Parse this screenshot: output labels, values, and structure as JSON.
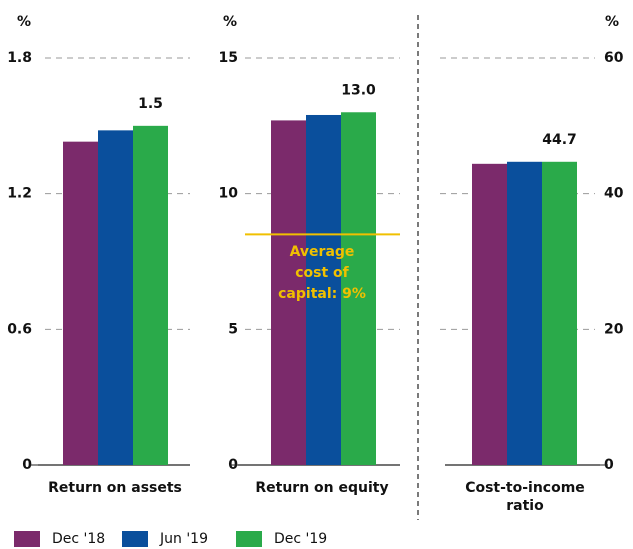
{
  "chart_data": [
    {
      "type": "bar",
      "ylabel": "%",
      "xlabel": "Return on assets",
      "ylim": [
        0,
        1.8
      ],
      "yticks": [
        0,
        0.6,
        1.2,
        1.8
      ],
      "yaxis_side": "left",
      "series": [
        {
          "name": "Dec '18",
          "color": "#7b2a6b",
          "values": [
            1.43
          ]
        },
        {
          "name": "Jun '19",
          "color": "#0a4f9c",
          "values": [
            1.48
          ]
        },
        {
          "name": "Dec '19",
          "color": "#2aaa4a",
          "values": [
            1.5
          ],
          "show_label": true
        }
      ]
    },
    {
      "type": "bar",
      "ylabel": "%",
      "xlabel": "Return on equity",
      "ylim": [
        0,
        15
      ],
      "yticks": [
        0,
        5,
        10,
        15
      ],
      "yaxis_side": "left",
      "series": [
        {
          "name": "Dec '18",
          "color": "#7b2a6b",
          "values": [
            12.7
          ]
        },
        {
          "name": "Jun '19",
          "color": "#0a4f9c",
          "values": [
            12.9
          ]
        },
        {
          "name": "Dec '19",
          "color": "#2aaa4a",
          "values": [
            13.0
          ],
          "value_labels": [
            "13.0"
          ],
          "show_label": true
        }
      ],
      "annotations": [
        {
          "text": "Average cost of capital: 9%",
          "y": 8.5,
          "color": "#f0c000"
        }
      ]
    },
    {
      "type": "bar",
      "ylabel": "%",
      "xlabel": "Cost-to-income ratio",
      "ylim": [
        0,
        60
      ],
      "yticks": [
        0,
        20,
        40,
        60
      ],
      "yaxis_side": "right",
      "series": [
        {
          "name": "Dec '18",
          "color": "#7b2a6b",
          "values": [
            44.4
          ]
        },
        {
          "name": "Jun '19",
          "color": "#0a4f9c",
          "values": [
            44.7
          ]
        },
        {
          "name": "Dec '19",
          "color": "#2aaa4a",
          "values": [
            44.7
          ],
          "show_label": true
        }
      ]
    }
  ]
}
